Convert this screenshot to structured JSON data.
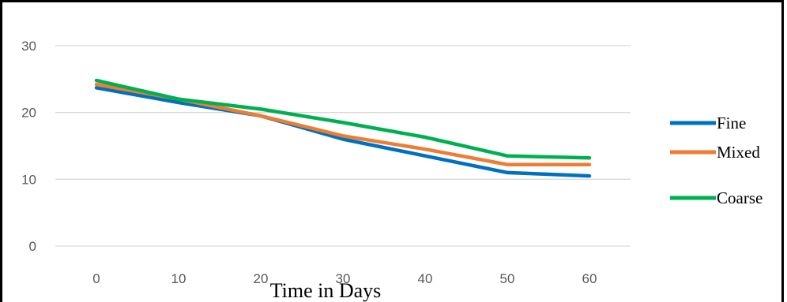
{
  "chart_data": {
    "type": "line",
    "title": "",
    "xlabel": "Time in Days",
    "ylabel": "",
    "x": [
      0,
      10,
      20,
      30,
      40,
      50,
      60
    ],
    "xlim": [
      -5,
      65
    ],
    "ylim": [
      0,
      30
    ],
    "y_ticks": [
      0,
      10,
      20,
      30
    ],
    "grid": true,
    "legend_position": "right",
    "series": [
      {
        "name": "Fine",
        "color": "#0070C0",
        "values": [
          23.7,
          21.5,
          19.5,
          16.0,
          13.5,
          11.0,
          10.5
        ]
      },
      {
        "name": "Mixed",
        "color": "#ED7D31",
        "values": [
          24.2,
          22.0,
          19.5,
          16.5,
          14.5,
          12.2,
          12.2
        ]
      },
      {
        "name": "Coarse",
        "color": "#00B050",
        "values": [
          24.8,
          22.0,
          20.5,
          18.5,
          16.3,
          13.5,
          13.2
        ]
      }
    ]
  }
}
